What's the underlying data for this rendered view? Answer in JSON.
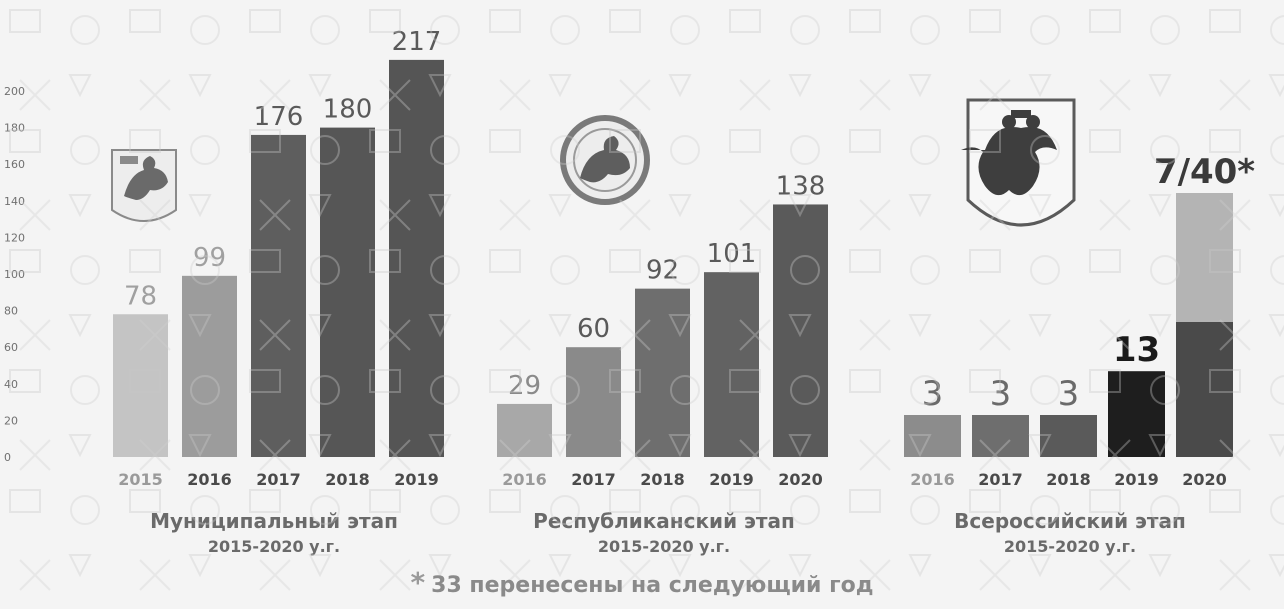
{
  "chart_data": [
    {
      "type": "bar",
      "title": "Муниципальный этап",
      "subtitle": "2015-2020 у.г.",
      "categories": [
        "2015",
        "2016",
        "2017",
        "2018",
        "2019"
      ],
      "values": [
        78,
        99,
        176,
        180,
        217
      ],
      "value_labels": [
        "78",
        "99",
        "176",
        "180",
        "217"
      ],
      "ylim": [
        0,
        200
      ],
      "yticks": [
        "0",
        "20",
        "40",
        "60",
        "80",
        "100",
        "120",
        "140",
        "160",
        "180",
        "200"
      ],
      "colors": [
        "#c4c4c4",
        "#9c9c9c",
        "#5e5e5e",
        "#565656",
        "#555555"
      ],
      "emblem": "kazan-coat-of-arms"
    },
    {
      "type": "bar",
      "title": "Республиканский этап",
      "subtitle": "2015-2020 у.г.",
      "categories": [
        "2016",
        "2017",
        "2018",
        "2019",
        "2020"
      ],
      "values": [
        29,
        60,
        92,
        101,
        138
      ],
      "value_labels": [
        "29",
        "60",
        "92",
        "101",
        "138"
      ],
      "colors": [
        "#a8a8a8",
        "#8a8a8a",
        "#6e6e6e",
        "#626262",
        "#5a5a5a"
      ],
      "emblem": "tatarstan-coat-of-arms"
    },
    {
      "type": "bar",
      "title": "Всероссийский этап",
      "subtitle": "2015-2020 у.г.",
      "categories": [
        "2016",
        "2017",
        "2018",
        "2019",
        "2020"
      ],
      "values": [
        3,
        3,
        3,
        13,
        40
      ],
      "stacked_2020": {
        "lower": 7,
        "total": 40
      },
      "value_labels": [
        "3",
        "3",
        "3",
        "13",
        "7/40*"
      ],
      "colors": [
        "#8c8c8c",
        "#6e6e6e",
        "#5a5a5a",
        "#1e1e1e",
        "#b4b4b4"
      ],
      "stack_lower_color": "#4a4a4a",
      "emblem": "russia-coat-of-arms"
    }
  ],
  "footnote": {
    "star": "*",
    "text": "33 перенесены на следующий год"
  }
}
